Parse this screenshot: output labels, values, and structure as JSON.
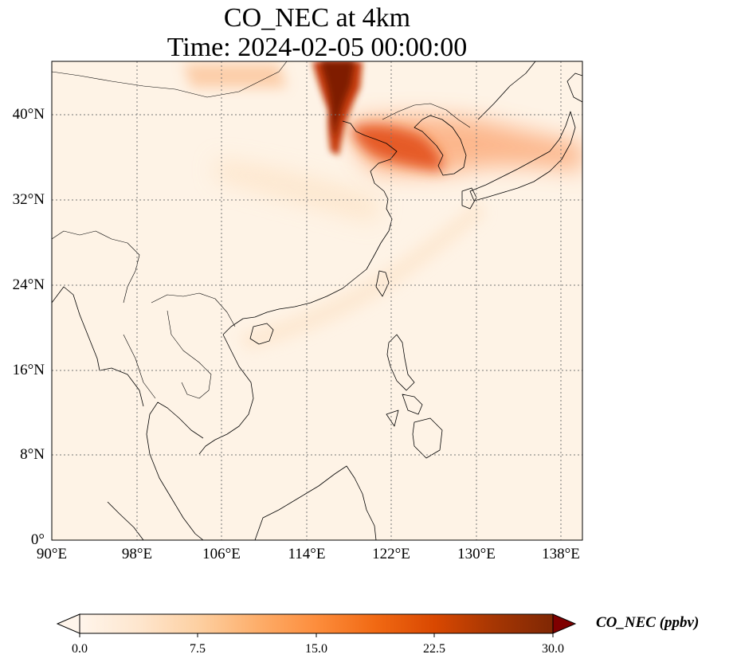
{
  "title": {
    "line1": "CO_NEC at 4km",
    "line2": "Time: 2024-02-05 00:00:00"
  },
  "map": {
    "extent_lon": [
      90,
      140
    ],
    "extent_lat": [
      0,
      45
    ],
    "gridlines": true,
    "lat_ticks": [
      {
        "value": 0,
        "label": "0°"
      },
      {
        "value": 8,
        "label": "8°N"
      },
      {
        "value": 16,
        "label": "16°N"
      },
      {
        "value": 24,
        "label": "24°N"
      },
      {
        "value": 32,
        "label": "32°N"
      },
      {
        "value": 40,
        "label": "40°N"
      }
    ],
    "lon_ticks": [
      {
        "value": 90,
        "label": "90°E"
      },
      {
        "value": 98,
        "label": "98°E"
      },
      {
        "value": 106,
        "label": "106°E"
      },
      {
        "value": 114,
        "label": "114°E"
      },
      {
        "value": 122,
        "label": "122°E"
      },
      {
        "value": 130,
        "label": "130°E"
      },
      {
        "value": 138,
        "label": "138°E"
      }
    ]
  },
  "colorbar": {
    "label": "CO_NEC (ppbv)",
    "min": 0,
    "max": 30,
    "ticks": [
      "0.0",
      "7.5",
      "15.0",
      "22.5",
      "30.0"
    ],
    "colors": [
      "#fff5eb",
      "#fee6ce",
      "#fdd0a2",
      "#fdae6b",
      "#fd8d3c",
      "#f16913",
      "#d94801",
      "#a63603",
      "#7f2704"
    ]
  }
}
